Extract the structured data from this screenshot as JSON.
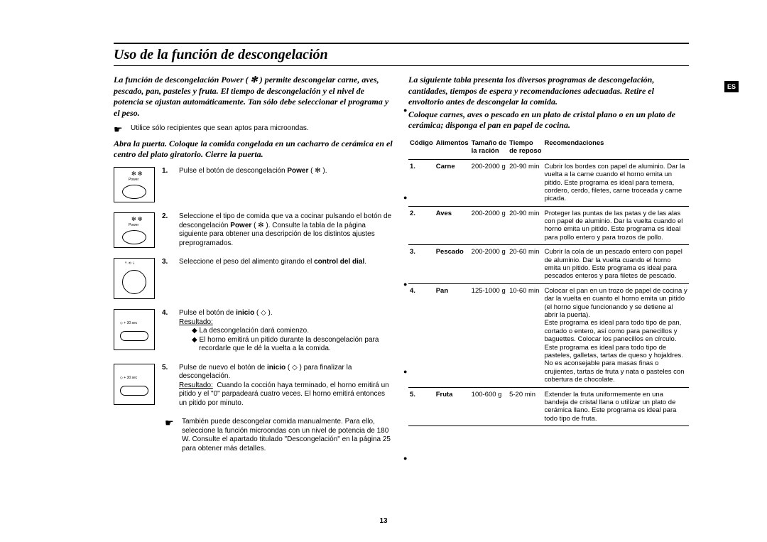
{
  "lang_tab": "ES",
  "page_number": "13",
  "title": "Uso de la función de descongelación",
  "left": {
    "lead": "La función de descongelación Power ( ✻ ) permite descongelar carne, aves, pescado, pan, pasteles y fruta. El tiempo de descongelación y el nivel de potencia se ajustan automáticamente. Tan sólo debe seleccionar el programa y el peso.",
    "tip": "Utilice sólo recipientes que sean aptos para microondas.",
    "open_door": "Abra la puerta. Coloque la comida congelada en un cacharro de cerámica en el centro del plato giratorio. Cierre la puerta.",
    "steps": [
      {
        "n": "1.",
        "text": "Pulse el botón de descongelación <b>Power</b> ( ✻ )."
      },
      {
        "n": "2.",
        "text": "Seleccione el tipo de comida que va a cocinar pulsando el botón de descongelación <b>Power</b> ( ✻ ). Consulte la tabla de la página siguiente para obtener una descripción de los distintos ajustes preprogramados."
      },
      {
        "n": "3.",
        "text": "Seleccione el peso del alimento girando el <b>control del dial</b>."
      },
      {
        "n": "4.",
        "text": "Pulse el botón de <b>inicio</b> ( ◇ ).",
        "result_label": "Resultado:",
        "result_items": [
          "◆ La descongelación dará comienzo.",
          "◆ El horno emitirá un pitido durante la descongelación para recordarle que le dé la vuelta a la comida."
        ]
      },
      {
        "n": "5.",
        "text": "Pulse de nuevo el botón de <b>inicio</b> ( ◇ ) para finalizar la descongelación.",
        "result_label": "Resultado:",
        "result_text": "Cuando la cocción haya terminado, el horno emitirá un pitido y el \"0\" parpadeará cuatro veces. El horno emitirá entonces un pitido por minuto."
      }
    ],
    "manual": "También puede descongelar comida manualmente. Para ello, seleccione la función microondas con un nivel de potencia de 180 W. Consulte el apartado titulado \"Descongelación\" en la página 25 para obtener más detalles."
  },
  "right": {
    "lead1": "La siguiente tabla presenta los diversos programas de descongelación, cantidades, tiempos de espera y recomendaciones adecuadas. Retire el envoltorio antes de descongelar la comida.",
    "lead2": "Coloque carnes, aves o pescado en un plato de cristal plano o en un plato de cerámica; disponga el pan en papel de cocina.",
    "headers": {
      "code": "Código",
      "food": "Alimentos",
      "portion_a": "Tamaño de",
      "portion_b": "la ración",
      "time_a": "Tiempo",
      "time_b": "de reposo",
      "rec": "Recomendaciones"
    },
    "rows": [
      {
        "code": "1.",
        "food": "Carne",
        "portion": "200-2000 g",
        "time": "20-90 min",
        "rec": "Cubrir los bordes con papel de aluminio. Dar la vuelta a la carne cuando el horno emita un pitido. Este programa es ideal para ternera, cordero, cerdo, filetes, carne troceada y carne picada."
      },
      {
        "code": "2.",
        "food": "Aves",
        "portion": "200-2000 g",
        "time": "20-90 min",
        "rec": "Proteger las puntas de las patas y de las alas con papel de aluminio. Dar la vuelta cuando el horno emita un pitido. Este programa es ideal para pollo entero y para trozos de pollo."
      },
      {
        "code": "3.",
        "food": "Pescado",
        "portion": "200-2000 g",
        "time": "20-60 min",
        "rec": "Cubrir la cola de un pescado entero con papel de aluminio. Dar la vuelta cuando el horno emita un pitido. Este programa es ideal para pescados enteros y para filetes de pescado."
      },
      {
        "code": "4.",
        "food": "Pan",
        "portion": "125-1000 g",
        "time": "10-60 min",
        "rec": "Colocar el pan en un trozo de papel de cocina y dar la vuelta en cuanto el horno emita un pitido (el horno sigue funcionando y se detiene al abrir la puerta).\nEste programa es ideal para todo tipo de pan, cortado o entero, así como para panecillos y baguettes. Colocar los panecillos en círculo.\nEste programa es ideal para todo tipo de pasteles, galletas, tartas de queso y hojaldres.\nNo es aconsejable para masas finas o crujientes, tartas de fruta y nata o pasteles con cobertura de chocolate."
      },
      {
        "code": "5.",
        "food": "Fruta",
        "portion": "100-600 g",
        "time": "5-20 min",
        "rec": "Extender la fruta uniformemente en una bandeja de cristal llana o utilizar un plato de cerámica llano. Este programa es ideal para todo tipo de fruta."
      }
    ]
  }
}
